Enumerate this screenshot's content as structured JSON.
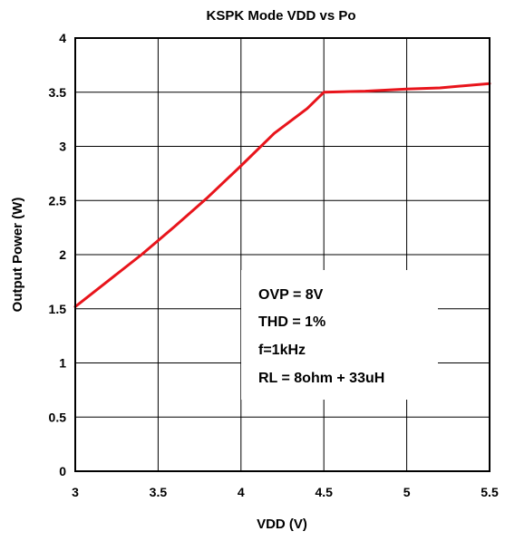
{
  "chart_data": {
    "type": "line",
    "title": "KSPK Mode VDD vs Po",
    "xlabel": "VDD (V)",
    "ylabel": "Output Power (W)",
    "xlim": [
      3,
      5.5
    ],
    "ylim": [
      0,
      4
    ],
    "xticks": [
      3,
      3.5,
      4,
      4.5,
      5,
      5.5
    ],
    "xtick_labels": [
      "3",
      "3.5",
      "4",
      "4.5",
      "5",
      "5.5"
    ],
    "yticks": [
      0,
      0.5,
      1,
      1.5,
      2,
      2.5,
      3,
      3.5,
      4
    ],
    "ytick_labels": [
      "0",
      "0.5",
      "1",
      "1.5",
      "2",
      "2.5",
      "3",
      "3.5",
      "4"
    ],
    "grid": true,
    "series": [
      {
        "color": "#e8141b",
        "x": [
          3.0,
          3.2,
          3.4,
          3.6,
          3.8,
          4.0,
          4.2,
          4.4,
          4.5,
          4.75,
          5.0,
          5.2,
          5.5
        ],
        "y": [
          1.52,
          1.76,
          2.0,
          2.26,
          2.53,
          2.82,
          3.12,
          3.35,
          3.5,
          3.51,
          3.53,
          3.54,
          3.58
        ]
      }
    ],
    "annotation": {
      "lines": [
        "OVP = 8V",
        "THD = 1%",
        "f=1kHz",
        "RL = 8ohm + 33uH"
      ]
    }
  }
}
